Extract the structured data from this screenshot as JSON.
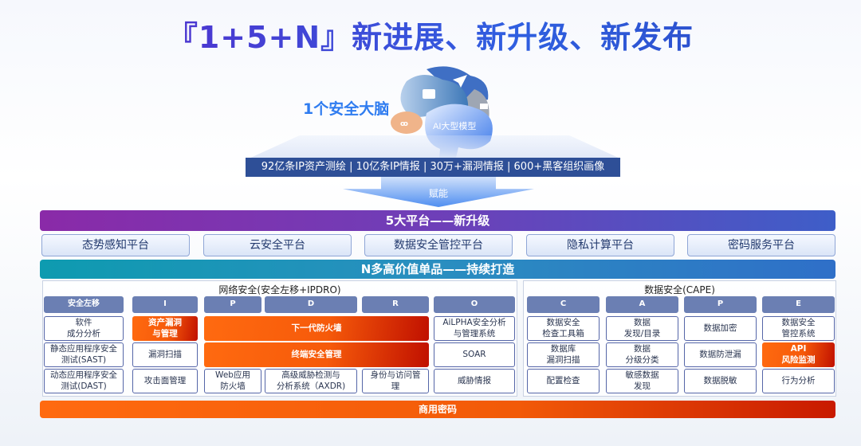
{
  "title": "『1+5+N』新进展、新升级、新发布",
  "brain": {
    "label": "1个安全大脑",
    "model_label": "AI大型模型",
    "icons": [
      "briefcase-icon",
      "paper-plane-icon",
      "chat-icon",
      "voicemail-icon"
    ]
  },
  "stats": "92亿条IP资产测绘 |  10亿条IP情报 | 30万+漏洞情报 | 600+黑客组织画像",
  "arrow_label": "赋能",
  "platforms_band": "5大平台——新升级",
  "platforms": [
    "态势感知平台",
    "云安全平台",
    "数据安全管控平台",
    "隐私计算平台",
    "密码服务平台"
  ],
  "products_band": "N多高价值单品——持续打造",
  "network": {
    "title": "网络安全(安全左移+IPDRO)",
    "headers": [
      "安全左移",
      "I",
      "P",
      "D",
      "R",
      "O"
    ],
    "cells": [
      "软件\n成分分析",
      "资产漏洞\n与管理",
      "下一代防火墙",
      "AiLPHA安全分析\n与管理系统",
      "静态应用程序安全\n测试(SAST)",
      "漏洞扫描",
      "终端安全管理",
      "SOAR",
      "动态应用程序安全\n测试(DAST)",
      "攻击面管理",
      "Web应用\n防火墙",
      "高级威胁检测与\n分析系统（AXDR)",
      "身份与访问管\n理",
      "威胁情报"
    ]
  },
  "data_security": {
    "title": "数据安全(CAPE)",
    "headers": [
      "C",
      "A",
      "P",
      "E"
    ],
    "cells": [
      "数据安全\n检查工具箱",
      "数据\n发现/目录",
      "数据加密",
      "数据安全\n管控系统",
      "数据库\n漏洞扫描",
      "数据\n分级分类",
      "数据防泄漏",
      "API\n风险监测",
      "配置检查",
      "敏感数据\n发现",
      "数据脱敏",
      "行为分析"
    ]
  },
  "bottom_band": "商用密码",
  "colors": {
    "highlight": "#f25a08",
    "header": "#6b7fb3",
    "platform_band": "#6e3fb8",
    "product_band": "#0e9bb0",
    "stats_bar": "#2e4f97"
  }
}
